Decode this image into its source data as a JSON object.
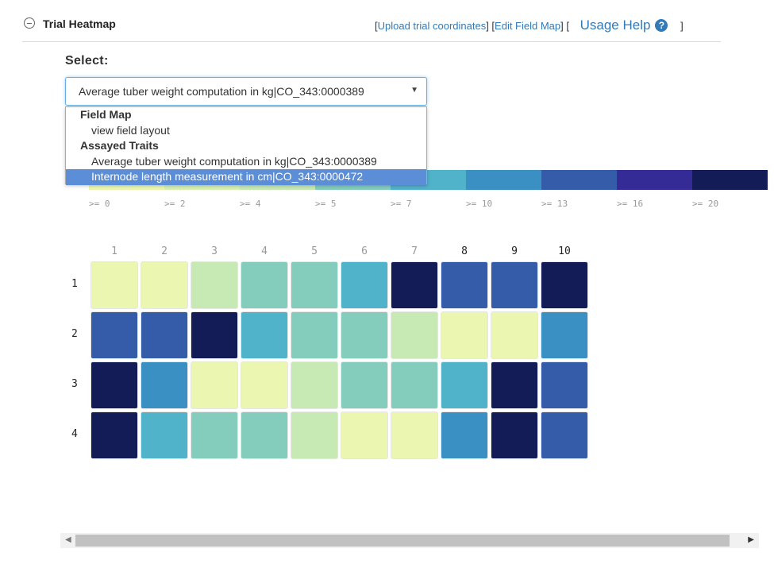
{
  "header": {
    "title": "Trial Heatmap",
    "link_open": "[",
    "link_upload": "Upload trial coordinates",
    "link_mid": "] [",
    "link_edit": "Edit Field Map",
    "link_after_edit": "] [",
    "usage_help": "Usage Help",
    "help_glyph": "?",
    "bracket_close": "]"
  },
  "select": {
    "label": "Select:",
    "value": "Average tuber weight computation in kg|CO_343:0000389",
    "arrow": "▼",
    "groups": [
      {
        "label": "Field Map",
        "options": [
          "view field layout"
        ]
      },
      {
        "label": "Assayed Traits",
        "options": [
          "Average tuber weight computation in kg|CO_343:0000389",
          "Internode length measurement in cm|CO_343:0000472"
        ]
      }
    ],
    "highlighted": "Internode length measurement in cm|CO_343:0000472"
  },
  "legend": {
    "colors": [
      "#ebf7b1",
      "#d7f0b2",
      "#c7e9b4",
      "#84ccbc",
      "#51b3c9",
      "#3a90c3",
      "#355ca9",
      "#342b97",
      "#141c58"
    ],
    "labels": [
      ">= 0",
      ">= 2",
      ">= 4",
      ">= 5",
      ">= 7",
      ">= 10",
      ">= 13",
      ">= 16",
      ">= 20"
    ]
  },
  "heatmap": {
    "columns": [
      "1",
      "2",
      "3",
      "4",
      "5",
      "6",
      "7",
      "8",
      "9",
      "10"
    ],
    "dark_columns": [
      "8",
      "9",
      "10"
    ],
    "rows": [
      "1",
      "2",
      "3",
      "4"
    ],
    "cells": [
      [
        "#ebf7b1",
        "#ebf7b1",
        "#c7e9b4",
        "#84ccbc",
        "#84ccbc",
        "#51b3c9",
        "#141c58",
        "#355ca9",
        "#355ca9",
        "#141c58"
      ],
      [
        "#355ca9",
        "#355ca9",
        "#141c58",
        "#51b3c9",
        "#84ccbc",
        "#84ccbc",
        "#c7e9b4",
        "#ebf7b1",
        "#ebf7b1",
        "#3a90c3"
      ],
      [
        "#141c58",
        "#3a90c3",
        "#ebf7b1",
        "#ebf7b1",
        "#c7e9b4",
        "#84ccbc",
        "#84ccbc",
        "#51b3c9",
        "#141c58",
        "#355ca9"
      ],
      [
        "#141c58",
        "#51b3c9",
        "#84ccbc",
        "#84ccbc",
        "#c7e9b4",
        "#ebf7b1",
        "#ebf7b1",
        "#3a90c3",
        "#141c58",
        "#355ca9"
      ]
    ]
  },
  "scrollbar": {
    "left_arrow": "◀",
    "right_arrow": "▶"
  }
}
